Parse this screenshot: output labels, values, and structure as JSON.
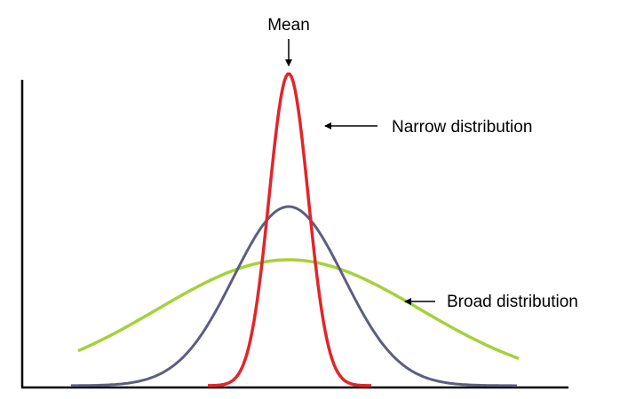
{
  "labels": {
    "mean": "Mean",
    "narrow": "Narrow distribution",
    "broad": "Broad distribution"
  },
  "curves": [
    {
      "id": "narrow-curve",
      "color": "#e0262b"
    },
    {
      "id": "medium-curve",
      "color": "#5c5e80"
    },
    {
      "id": "broad-curve",
      "color": "#a6d13a"
    }
  ],
  "axis_color": "#000000"
}
